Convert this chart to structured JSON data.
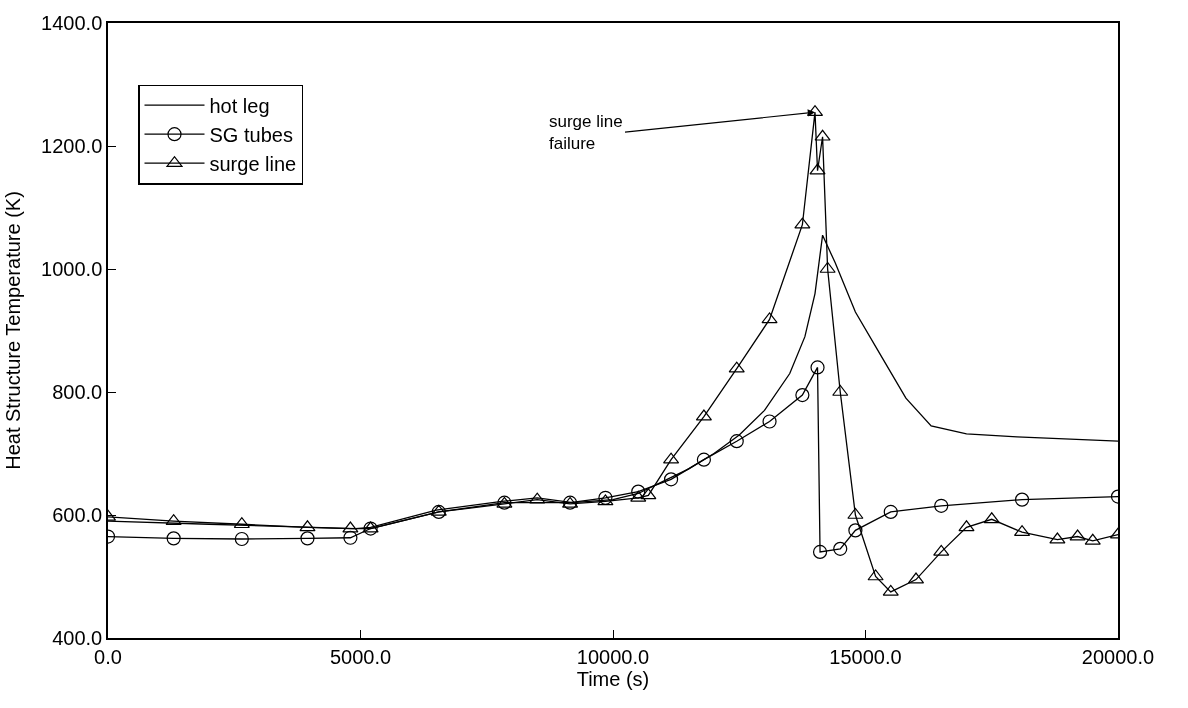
{
  "chart_data": {
    "type": "line",
    "xlabel": "Time (s)",
    "ylabel": "Heat Structure Temperature (K)",
    "xlim": [
      0,
      20000
    ],
    "ylim": [
      400,
      1400
    ],
    "xticks": [
      {
        "value": 0,
        "label": "0.0"
      },
      {
        "value": 5000,
        "label": "5000.0"
      },
      {
        "value": 10000,
        "label": "10000.0"
      },
      {
        "value": 15000,
        "label": "15000.0"
      },
      {
        "value": 20000,
        "label": "20000.0"
      }
    ],
    "yticks": [
      {
        "value": 400,
        "label": "400.0"
      },
      {
        "value": 600,
        "label": "600.0"
      },
      {
        "value": 800,
        "label": "800.0"
      },
      {
        "value": 1000,
        "label": "1000.0"
      },
      {
        "value": 1200,
        "label": "1200.0"
      },
      {
        "value": 1400,
        "label": "1400.0"
      }
    ],
    "legend": "top left",
    "line_style": "solid",
    "annotations": [
      {
        "text": "surge line\nfailure",
        "x": 14000,
        "y": 1255
      }
    ],
    "series": [
      {
        "name": "hot leg",
        "color": "#000000",
        "marker": "none",
        "x": [
          0,
          2000,
          4900,
          5200,
          6500,
          7800,
          8500,
          9200,
          10000,
          10500,
          11000,
          11500,
          12000,
          12500,
          13000,
          13500,
          13800,
          14000,
          14150,
          14400,
          14800,
          15300,
          15800,
          16300,
          17000,
          18000,
          20000
        ],
        "values": [
          590,
          585,
          578,
          580,
          608,
          622,
          628,
          620,
          625,
          635,
          655,
          675,
          700,
          730,
          770,
          830,
          890,
          960,
          1055,
          1010,
          930,
          860,
          790,
          745,
          732,
          727,
          720
        ]
      },
      {
        "name": "SG tubes",
        "color": "#000000",
        "marker": "circle",
        "x": [
          0,
          1300,
          2650,
          3950,
          4800,
          5200,
          6550,
          7850,
          9150,
          9850,
          10500,
          11150,
          11800,
          12450,
          13100,
          13750,
          14050,
          14100,
          14500,
          14800,
          15500,
          16500,
          18100,
          20000
        ],
        "values": [
          565,
          562,
          561,
          562,
          563,
          578,
          605,
          620,
          620,
          628,
          638,
          658,
          690,
          720,
          752,
          795,
          840,
          540,
          545,
          575,
          605,
          615,
          625,
          630
        ]
      },
      {
        "name": "surge line",
        "color": "#000000",
        "marker": "triangle",
        "x": [
          0,
          1300,
          2650,
          3950,
          4800,
          5200,
          6550,
          7850,
          8500,
          9150,
          9850,
          10500,
          10700,
          11150,
          11800,
          12450,
          13100,
          13750,
          14000,
          14050,
          14150,
          14250,
          14500,
          14800,
          15200,
          15500,
          16000,
          16500,
          17000,
          17500,
          18100,
          18800,
          19200,
          19500,
          20000
        ],
        "values": [
          597,
          590,
          585,
          580,
          578,
          578,
          605,
          618,
          625,
          618,
          622,
          628,
          632,
          690,
          760,
          838,
          918,
          1072,
          1255,
          1160,
          1215,
          1000,
          800,
          600,
          500,
          475,
          495,
          540,
          580,
          593,
          572,
          560,
          565,
          558,
          568
        ]
      }
    ]
  }
}
